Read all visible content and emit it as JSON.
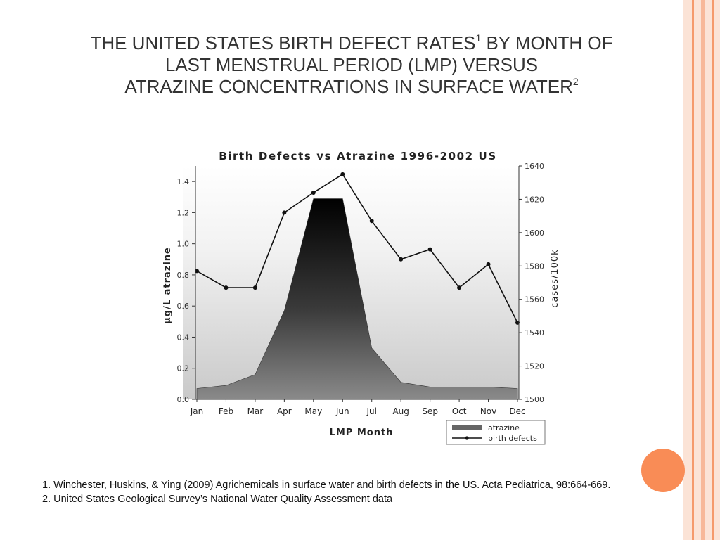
{
  "slide": {
    "title_line1": "THE UNITED STATES BIRTH DEFECT RATES",
    "title_sup1": "1",
    "title_line1_end": " BY MONTH OF",
    "title_line2": "LAST MENSTRUAL PERIOD (LMP) VERSUS",
    "title_line3": "ATRAZINE CONCENTRATIONS IN SURFACE WATER",
    "title_sup2": "2",
    "footnote1": "1. Winchester, Huskins, & Ying (2009) Agrichemicals in surface water and birth defects in the US. Acta Pediatrica, 98:664-669.",
    "footnote2": "2. United States Geological Survey’s National Water Quality Assessment data"
  },
  "colors": {
    "stripe_light": "#fbe3d6",
    "stripe_mid": "#f7b899",
    "stripe_accent": "#f59a6c",
    "orange_dot": "#f98c56",
    "area_dark": "#000000",
    "area_light": "#8a8a8a",
    "line": "#111111"
  },
  "chart_data": {
    "type": "area+line",
    "title": "Birth Defects vs Atrazine 1996-2002 US",
    "xlabel": "LMP Month",
    "ylabel_left": "μg/L atrazine",
    "ylabel_right": "cases/100k",
    "categories": [
      "Jan",
      "Feb",
      "Mar",
      "Apr",
      "May",
      "Jun",
      "Jul",
      "Aug",
      "Sep",
      "Oct",
      "Nov",
      "Dec"
    ],
    "left_axis": {
      "ylim": [
        0,
        1.5
      ],
      "ticks": [
        0.0,
        0.2,
        0.4,
        0.6,
        0.8,
        1.0,
        1.2,
        1.4
      ],
      "tick_labels": [
        "0.0",
        "0.2",
        "0.4",
        "0.6",
        "0.8",
        "1.0",
        "1.2",
        "1.4"
      ]
    },
    "right_axis": {
      "ylim": [
        1500,
        1640
      ],
      "ticks": [
        1500,
        1520,
        1540,
        1560,
        1580,
        1600,
        1620,
        1640
      ],
      "tick_labels": [
        "1500",
        "1520",
        "1540",
        "1560",
        "1580",
        "1600",
        "1620",
        "1640"
      ]
    },
    "series": [
      {
        "name": "atrazine",
        "kind": "area",
        "axis": "left",
        "values": [
          0.07,
          0.09,
          0.16,
          0.57,
          1.29,
          1.29,
          0.33,
          0.11,
          0.08,
          0.08,
          0.08,
          0.07
        ]
      },
      {
        "name": "birth defects",
        "kind": "line",
        "axis": "right",
        "values": [
          1577,
          1567,
          1567,
          1612,
          1624,
          1635,
          1607,
          1584,
          1590,
          1567,
          1581,
          1546
        ]
      }
    ],
    "legend_position": "bottom-right",
    "grid": false
  }
}
